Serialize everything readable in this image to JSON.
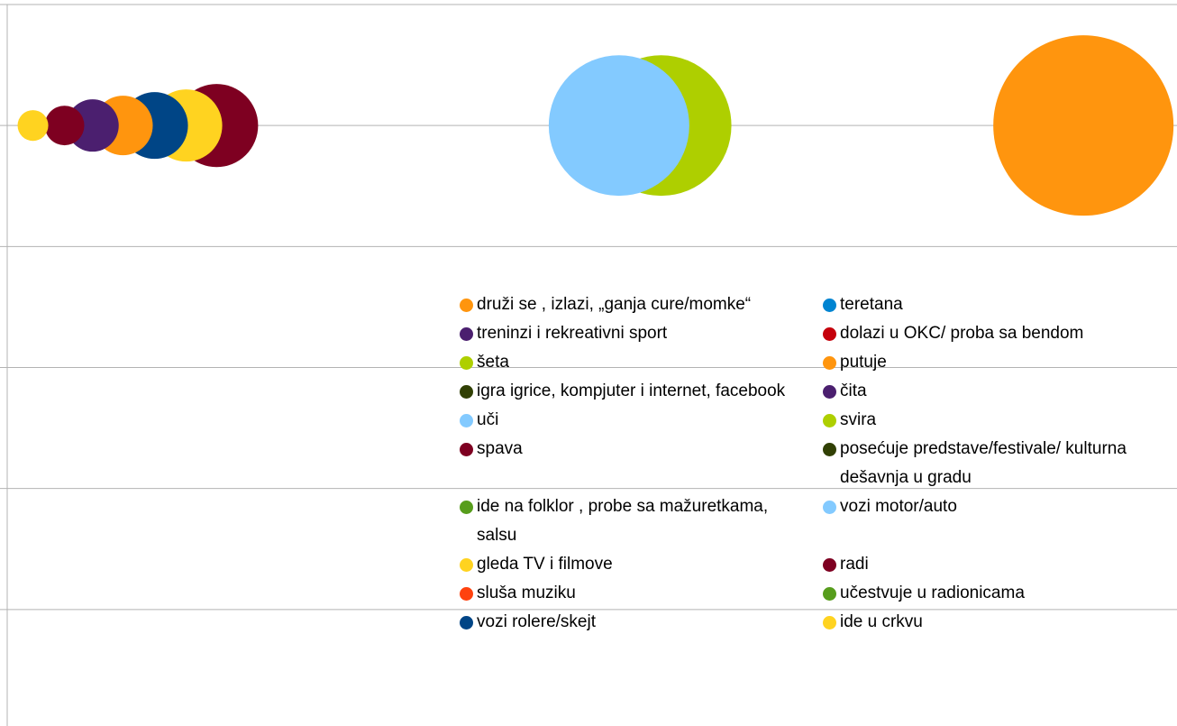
{
  "chart_data": {
    "type": "bubble",
    "xlim": [
      0,
      100
    ],
    "ylim": [
      0,
      6
    ],
    "yticks": [
      0,
      1,
      2,
      3,
      4,
      5,
      6
    ],
    "grid": true,
    "series": [
      {
        "name": "druži se , izlazi, „ganja cure/momke“",
        "color": "#ff950e",
        "x": [
          92
        ],
        "values": [
          5
        ],
        "sizes": [
          100
        ]
      },
      {
        "name": "teretana",
        "color": "#0084d1",
        "x": [],
        "values": [],
        "sizes": []
      },
      {
        "name": "treninzi  i rekreativni sport",
        "color": "#4b1f6f",
        "x": [
          7.3
        ],
        "values": [
          5
        ],
        "sizes": [
          8.4
        ]
      },
      {
        "name": "dolazi u OKC/ proba sa bendom",
        "color": "#c5000b",
        "x": [],
        "values": [],
        "sizes": []
      },
      {
        "name": "šeta",
        "color": "#aecf00",
        "x": [
          55.9
        ],
        "values": [
          5
        ],
        "sizes": [
          60.8
        ]
      },
      {
        "name": "putuje",
        "color": "#ff950e",
        "x": [
          9.9
        ],
        "values": [
          5
        ],
        "sizes": [
          10.9
        ]
      },
      {
        "name": "igra igrice, kompjuter i internet, facebook",
        "color": "#314004",
        "x": [],
        "values": [],
        "sizes": []
      },
      {
        "name": "čita",
        "color": "#4b1f6f",
        "x": [],
        "values": [],
        "sizes": []
      },
      {
        "name": "uči",
        "color": "#83caff",
        "x": [
          52.3
        ],
        "values": [
          5
        ],
        "sizes": [
          60.8
        ]
      },
      {
        "name": "svira",
        "color": "#aecf00",
        "x": [],
        "values": [],
        "sizes": []
      },
      {
        "name": "spava",
        "color": "#7e0021",
        "x": [
          17.9
        ],
        "values": [
          5
        ],
        "sizes": [
          21.2
        ]
      },
      {
        "name": "posećuje predstave/festivale/ kulturna dešavnja u gradu",
        "color": "#314004",
        "x": [],
        "values": [],
        "sizes": []
      },
      {
        "name": "ide na folklor , probe sa mažuretkama, salsu",
        "color": "#579d1c",
        "x": [],
        "values": [],
        "sizes": []
      },
      {
        "name": "vozi motor/auto",
        "color": "#83caff",
        "x": [],
        "values": [],
        "sizes": []
      },
      {
        "name": "gleda TV i filmove",
        "color": "#ffd320",
        "x": [
          15.3
        ],
        "values": [
          5
        ],
        "sizes": [
          16
        ]
      },
      {
        "name": "radi",
        "color": "#7e0021",
        "x": [
          4.9
        ],
        "values": [
          5
        ],
        "sizes": [
          4.8
        ]
      },
      {
        "name": "sluša muziku",
        "color": "#ff420e",
        "x": [],
        "values": [],
        "sizes": []
      },
      {
        "name": "učestvuje u radionicama",
        "color": "#579d1c",
        "x": [],
        "values": [],
        "sizes": []
      },
      {
        "name": "vozi rolere/skejt",
        "color": "#004586",
        "x": [
          12.6
        ],
        "values": [
          5
        ],
        "sizes": [
          13.7
        ]
      },
      {
        "name": "ide u crkvu",
        "color": "#ffd320",
        "x": [
          2.2
        ],
        "values": [
          5
        ],
        "sizes": [
          2.9
        ]
      }
    ]
  }
}
